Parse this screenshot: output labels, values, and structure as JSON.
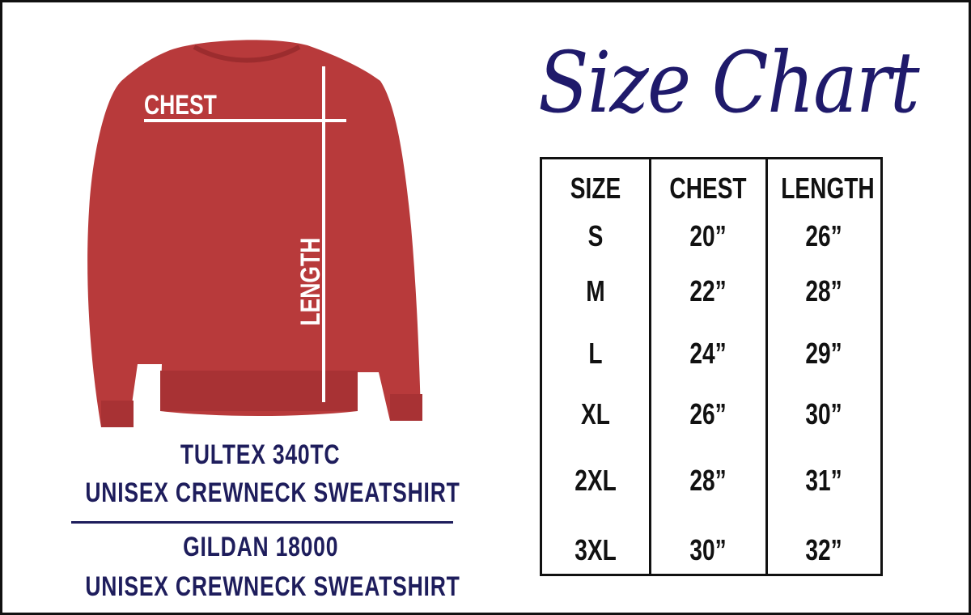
{
  "title": "Size Chart",
  "diagram": {
    "chest_label": "CHEST",
    "length_label": "LENGTH",
    "garment_color": "#b83a3b"
  },
  "products": [
    {
      "name": "TULTEX 340TC",
      "description": "UNISEX CREWNECK SWEATSHIRT"
    },
    {
      "name": "GILDAN 18000",
      "description": "UNISEX CREWNECK SWEATSHIRT"
    }
  ],
  "table": {
    "headers": [
      "SIZE",
      "CHEST",
      "LENGTH"
    ],
    "rows": [
      [
        "S",
        "20”",
        "26”"
      ],
      [
        "M",
        "22”",
        "28”"
      ],
      [
        "L",
        "24”",
        "29”"
      ],
      [
        "XL",
        "26”",
        "30”"
      ],
      [
        "2XL",
        "28”",
        "31”"
      ],
      [
        "3XL",
        "30”",
        "32”"
      ]
    ]
  },
  "colors": {
    "navy": "#1e1d5c",
    "title": "#1f1a6b"
  }
}
